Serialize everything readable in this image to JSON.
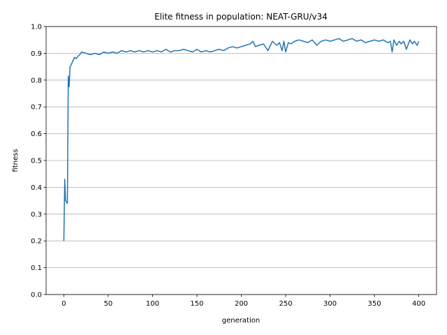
{
  "chart_data": {
    "type": "line",
    "title": "Elite fitness in population: NEAT-GRU/v34",
    "xlabel": "generation",
    "ylabel": "fitness",
    "xlim": [
      -20,
      420
    ],
    "ylim": [
      0.0,
      1.0
    ],
    "xticks": [
      0,
      50,
      100,
      150,
      200,
      250,
      300,
      350,
      400
    ],
    "yticks": [
      0.0,
      0.1,
      0.2,
      0.3,
      0.4,
      0.5,
      0.6,
      0.7,
      0.8,
      0.9,
      1.0
    ],
    "ytick_labels": [
      "0.0",
      "0.1",
      "0.2",
      "0.3",
      "0.4",
      "0.5",
      "0.6",
      "0.7",
      "0.8",
      "0.9",
      "1.0"
    ],
    "grid": "horizontal",
    "line_color": "#1f77b4",
    "series": [
      {
        "x": [
          0,
          1,
          2,
          3,
          4,
          5,
          6,
          7,
          8,
          10,
          12,
          14,
          16,
          18,
          20,
          25,
          30,
          35,
          40,
          45,
          50,
          55,
          60,
          65,
          70,
          75,
          80,
          85,
          90,
          95,
          100,
          105,
          110,
          115,
          120,
          125,
          130,
          135,
          140,
          145,
          150,
          155,
          160,
          165,
          170,
          175,
          180,
          185,
          190,
          195,
          200,
          205,
          210,
          213,
          216,
          220,
          225,
          230,
          235,
          240,
          243,
          246,
          248,
          250,
          253,
          256,
          260,
          265,
          270,
          275,
          280,
          285,
          290,
          295,
          300,
          305,
          310,
          315,
          320,
          325,
          330,
          335,
          340,
          345,
          350,
          355,
          360,
          365,
          368,
          370,
          372,
          375,
          378,
          380,
          383,
          386,
          390,
          393,
          395,
          398,
          400
        ],
        "y": [
          0.2,
          0.43,
          0.35,
          0.345,
          0.34,
          0.815,
          0.775,
          0.85,
          0.855,
          0.87,
          0.885,
          0.88,
          0.89,
          0.895,
          0.905,
          0.9,
          0.895,
          0.9,
          0.895,
          0.905,
          0.9,
          0.905,
          0.9,
          0.91,
          0.905,
          0.91,
          0.905,
          0.91,
          0.905,
          0.91,
          0.905,
          0.91,
          0.905,
          0.915,
          0.905,
          0.91,
          0.91,
          0.915,
          0.91,
          0.905,
          0.915,
          0.905,
          0.91,
          0.905,
          0.91,
          0.915,
          0.91,
          0.92,
          0.925,
          0.92,
          0.925,
          0.93,
          0.935,
          0.945,
          0.925,
          0.93,
          0.935,
          0.91,
          0.945,
          0.93,
          0.94,
          0.91,
          0.945,
          0.905,
          0.94,
          0.935,
          0.945,
          0.95,
          0.945,
          0.94,
          0.95,
          0.93,
          0.945,
          0.95,
          0.945,
          0.95,
          0.955,
          0.945,
          0.95,
          0.955,
          0.945,
          0.95,
          0.94,
          0.945,
          0.95,
          0.945,
          0.95,
          0.94,
          0.945,
          0.905,
          0.95,
          0.93,
          0.945,
          0.935,
          0.945,
          0.915,
          0.95,
          0.935,
          0.945,
          0.93,
          0.945
        ]
      }
    ]
  }
}
